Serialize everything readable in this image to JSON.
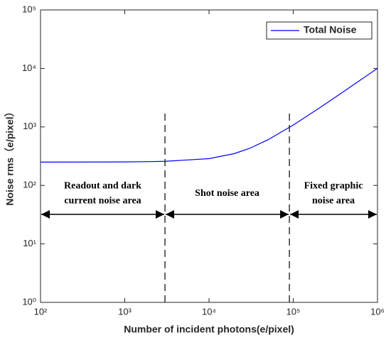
{
  "chart_data": {
    "type": "line",
    "x_label": "Number of incident photons(e/pixel)",
    "y_label": "Noise rms（e/pixel）",
    "log_x": true,
    "log_y": true,
    "xlim": [
      100,
      1000000
    ],
    "ylim": [
      1,
      100000
    ],
    "xticks": [
      {
        "value": 100,
        "label": "10²"
      },
      {
        "value": 1000,
        "label": "10³"
      },
      {
        "value": 10000,
        "label": "10⁴"
      },
      {
        "value": 100000,
        "label": "10⁵"
      },
      {
        "value": 1000000,
        "label": "10⁶"
      }
    ],
    "yticks": [
      {
        "value": 1,
        "label": "10⁰"
      },
      {
        "value": 10,
        "label": "10¹"
      },
      {
        "value": 100,
        "label": "10²"
      },
      {
        "value": 1000,
        "label": "10³"
      },
      {
        "value": 10000,
        "label": "10⁴"
      },
      {
        "value": 100000,
        "label": "10⁵"
      }
    ],
    "legend": "upper right",
    "x": [
      100,
      1000,
      2000,
      3000,
      10000,
      20000,
      30000,
      50000,
      100000,
      200000,
      300000,
      500000,
      1000000
    ],
    "series": [
      {
        "name": "Total Noise",
        "color": "#0000ff",
        "values": [
          250,
          252,
          255,
          258,
          287,
          350,
          427,
          602,
          1078,
          2064,
          3060,
          5060,
          10050
        ]
      }
    ],
    "regions": [
      {
        "label": [
          "Readout and dark",
          "current noise area"
        ],
        "from": 100,
        "to": 3000
      },
      {
        "label": [
          "Shot noise area"
        ],
        "from": 3000,
        "to": 90000
      },
      {
        "label": [
          "Fixed graphic",
          "noise area"
        ],
        "from": 90000,
        "to": 1000000
      }
    ]
  }
}
